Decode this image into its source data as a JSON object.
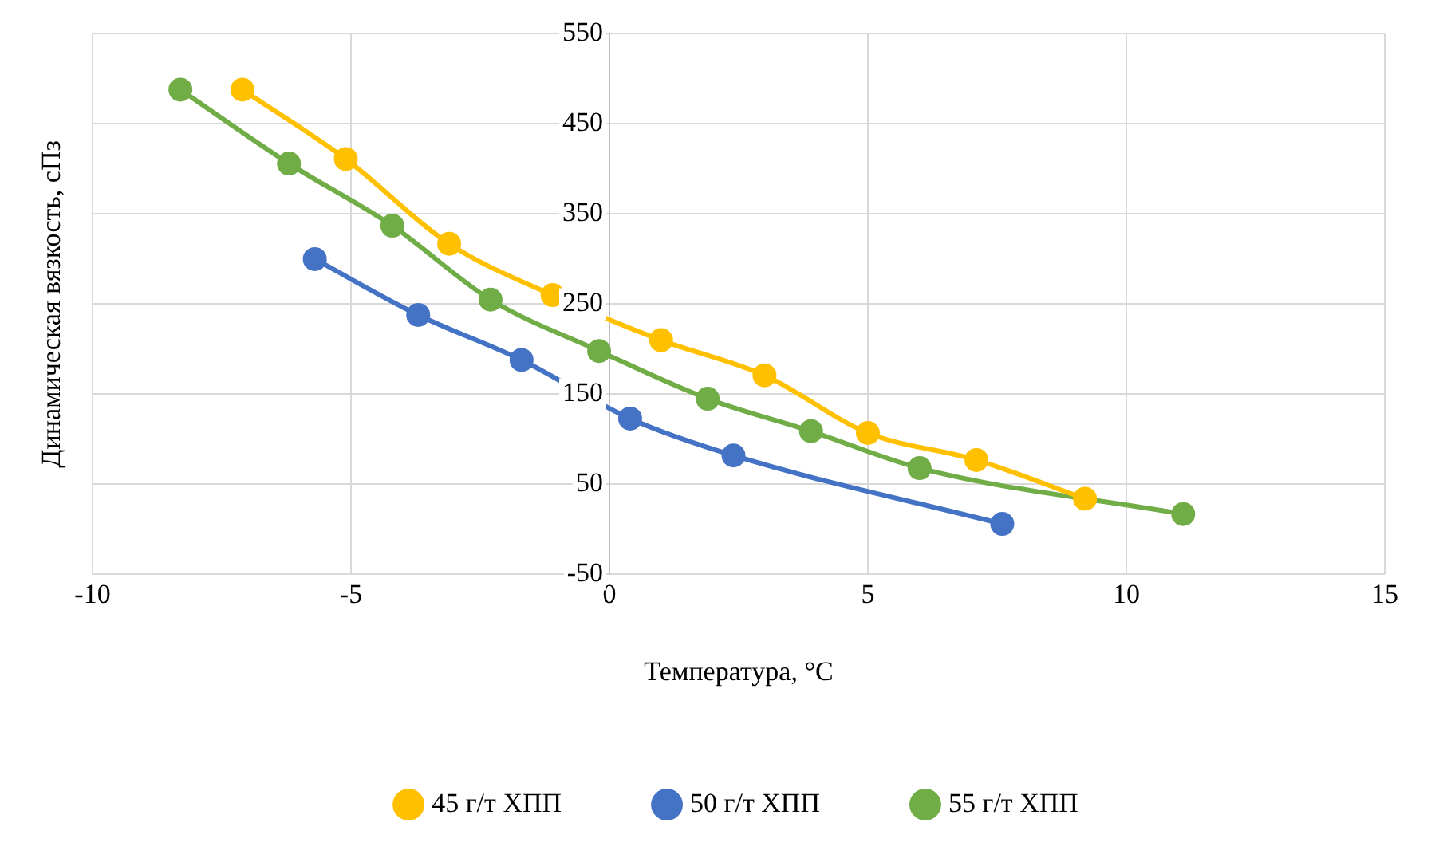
{
  "chart_data": {
    "type": "line",
    "xlabel": "Температура, °C",
    "ylabel": "Динамическая вязкость, сПз",
    "xlim": [
      -10,
      15
    ],
    "xticks": [
      -10,
      -5,
      0,
      5,
      10,
      15
    ],
    "ylim": [
      -50,
      550
    ],
    "yticks": [
      -50,
      50,
      150,
      250,
      350,
      450,
      550
    ],
    "grid": true,
    "legend": "bottom",
    "marker": "circle",
    "line_style": "solid",
    "series": [
      {
        "name": "45 г/т ХПП",
        "color": "#ffc000",
        "x": [
          -7.1,
          -5.1,
          -3.1,
          -1.1,
          1,
          3,
          5,
          7.1,
          9.2
        ],
        "values": [
          488,
          411,
          317,
          260,
          210,
          171,
          107,
          77,
          34
        ]
      },
      {
        "name": "50 г/т ХПП",
        "color": "#4472c4",
        "x": [
          -5.7,
          -3.7,
          -1.7,
          0.4,
          2.4,
          7.6
        ],
        "values": [
          300,
          238,
          188,
          123,
          82,
          6
        ]
      },
      {
        "name": "55 г/т ХПП",
        "color": "#70ad47",
        "x": [
          -8.3,
          -6.2,
          -4.2,
          -2.3,
          -0.2,
          1.9,
          3.9,
          6,
          11.1
        ],
        "values": [
          488,
          406,
          337,
          255,
          198,
          145,
          109,
          68,
          17
        ]
      }
    ]
  }
}
